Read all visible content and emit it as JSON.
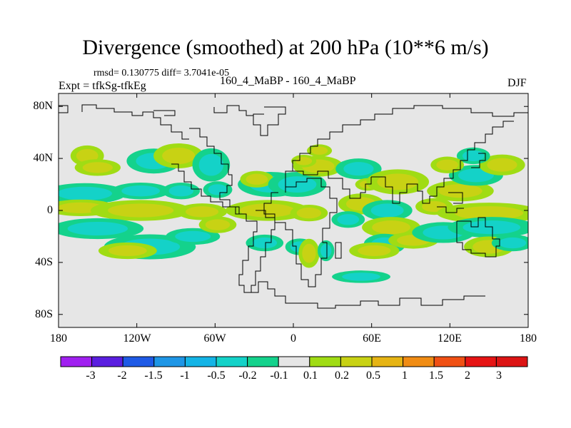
{
  "title": "Divergence (smoothed) at 200 hPa (10**6 m/s)",
  "stats": {
    "text": "rmsd= 0.130775 diff= 3.7041e-05",
    "rmsd": 0.130775,
    "diff": 3.7041e-05
  },
  "experiment": "Expt = tfkSg-tfkEg",
  "case_label": "160_4_MaBP - 160_4_MaBP",
  "season": "DJF",
  "chart_data": {
    "type": "heatmap",
    "title": "Divergence (smoothed) at 200 hPa (10**6 m/s)",
    "projection": "cylindrical-equidistant",
    "x_range": [
      -180,
      180
    ],
    "y_range": [
      -90,
      90
    ],
    "y_ticks": [
      {
        "value": 80,
        "label": "80N"
      },
      {
        "value": 40,
        "label": "40N"
      },
      {
        "value": 0,
        "label": "0"
      },
      {
        "value": -40,
        "label": "40S"
      },
      {
        "value": -80,
        "label": "80S"
      }
    ],
    "x_ticks": [
      {
        "value": -180,
        "label": "180"
      },
      {
        "value": -120,
        "label": "120W"
      },
      {
        "value": -60,
        "label": "60W"
      },
      {
        "value": 0,
        "label": "0"
      },
      {
        "value": 60,
        "label": "60E"
      },
      {
        "value": 120,
        "label": "120E"
      },
      {
        "value": 180,
        "label": "180"
      }
    ],
    "levels": [
      "-3",
      "-2",
      "-1.5",
      "-1",
      "-0.5",
      "-0.2",
      "-0.1",
      "0.1",
      "0.2",
      "0.5",
      "1",
      "1.5",
      "2",
      "3"
    ],
    "colors": [
      "#a020f0",
      "#5a1ee0",
      "#1e5ae6",
      "#1e96e6",
      "#14b4e6",
      "#14d2c8",
      "#14d28c",
      "#e6e6e6",
      "#a0dc14",
      "#c8d214",
      "#e6b414",
      "#f08c14",
      "#f05014",
      "#e61414",
      "#dc1414"
    ],
    "background_color": "#e6e6e6",
    "regions": [
      {
        "name": "n-pacific-west",
        "level": 1,
        "lon": -158,
        "lat": 42,
        "rlon": 8,
        "rlat": 5
      },
      {
        "name": "n-pacific-west-pos",
        "level": 1,
        "lon": -150,
        "lat": 33,
        "rlon": 11,
        "rlat": 4
      },
      {
        "name": "ne-pacific-neg",
        "level": -1,
        "lon": -107,
        "lat": 38,
        "rlon": 13,
        "rlat": 6
      },
      {
        "name": "ne-pacific-pos",
        "level": 1,
        "lon": -88,
        "lat": 42,
        "rlon": 12,
        "rlat": 6
      },
      {
        "name": "us-west-neg",
        "level": -1,
        "lon": -63,
        "lat": 35,
        "rlon": 9,
        "rlat": 8
      },
      {
        "name": "trop-pac-west-neg",
        "level": -1,
        "lon": -160,
        "lat": 13,
        "rlon": 20,
        "rlat": 5
      },
      {
        "name": "trop-pac-mid-neg",
        "level": -1,
        "lon": -117,
        "lat": 15,
        "rlon": 14,
        "rlat": 4
      },
      {
        "name": "trop-pac-mid-neg2",
        "level": -1,
        "lon": -86,
        "lat": 15,
        "rlon": 9,
        "rlat": 4
      },
      {
        "name": "c-america-neg",
        "level": -1,
        "lon": -58,
        "lat": 16,
        "rlon": 7,
        "rlat": 4
      },
      {
        "name": "eq-pac-pos-west",
        "level": 1,
        "lon": -163,
        "lat": 2,
        "rlon": 17,
        "rlat": 4
      },
      {
        "name": "eq-pac-pos-mid",
        "level": 1,
        "lon": -117,
        "lat": 0,
        "rlon": 24,
        "rlat": 5
      },
      {
        "name": "eq-pac-pos-east",
        "level": 1,
        "lon": -70,
        "lat": -1,
        "rlon": 12,
        "rlat": 4
      },
      {
        "name": "s-pac-west-neg",
        "level": -1,
        "lon": -150,
        "lat": -14,
        "rlon": 22,
        "rlat": 5
      },
      {
        "name": "spcz-neg",
        "level": -1,
        "lon": -110,
        "lat": -28,
        "rlon": 22,
        "rlat": 6
      },
      {
        "name": "spcz-neg2",
        "level": -1,
        "lon": -77,
        "lat": -20,
        "rlon": 13,
        "rlat": 4
      },
      {
        "name": "s-pac-pos",
        "level": 1,
        "lon": -127,
        "lat": -31,
        "rlon": 14,
        "rlat": 4
      },
      {
        "name": "s-pac-pos2",
        "level": 1,
        "lon": -58,
        "lat": -11,
        "rlon": 9,
        "rlat": 4
      },
      {
        "name": "atlantic-n-neg",
        "level": -1,
        "lon": -17,
        "lat": 20,
        "rlon": 16,
        "rlat": 6
      },
      {
        "name": "atlantic-n-pos",
        "level": 1,
        "lon": -28,
        "lat": 24,
        "rlon": 8,
        "rlat": 4
      },
      {
        "name": "africa-n-neg",
        "level": -1,
        "lon": 3,
        "lat": 20,
        "rlon": 14,
        "rlat": 6
      },
      {
        "name": "n-africa-pos",
        "level": 1,
        "lon": 19,
        "lat": 34,
        "rlon": 12,
        "rlat": 5
      },
      {
        "name": "europe-pos",
        "level": 1,
        "lon": 8,
        "lat": 38,
        "rlon": 6,
        "rlat": 3
      },
      {
        "name": "n-europe-pos",
        "level": 1,
        "lon": 20,
        "lat": 46,
        "rlon": 6,
        "rlat": 3
      },
      {
        "name": "atlantic-eq-pos",
        "level": 1,
        "lon": -20,
        "lat": 0,
        "rlon": 20,
        "rlat": 5
      },
      {
        "name": "atlantic-eq-pos2",
        "level": 1,
        "lon": 12,
        "lat": -2,
        "rlon": 9,
        "rlat": 4
      },
      {
        "name": "s-atlantic-neg",
        "level": -1,
        "lon": -22,
        "lat": -25,
        "rlon": 9,
        "rlat": 4
      },
      {
        "name": "s-atlantic-neg2",
        "level": -1,
        "lon": 5,
        "lat": -28,
        "rlon": 7,
        "rlat": 4
      },
      {
        "name": "s-africa-pos",
        "level": 1,
        "lon": 12,
        "lat": -33,
        "rlon": 5,
        "rlat": 7
      },
      {
        "name": "s-africa-neg",
        "level": -1,
        "lon": 25,
        "lat": -31,
        "rlon": 4,
        "rlat": 5
      },
      {
        "name": "s-ocean-neg",
        "level": -1,
        "lon": 52,
        "lat": -51,
        "rlon": 14,
        "rlat": 3
      },
      {
        "name": "mideast-neg",
        "level": -1,
        "lon": 50,
        "lat": 32,
        "rlon": 11,
        "rlat": 5
      },
      {
        "name": "mideast-pos",
        "level": 1,
        "lon": 57,
        "lat": 20,
        "rlon": 6,
        "rlat": 3
      },
      {
        "name": "indian-n-pos",
        "level": 1,
        "lon": 52,
        "lat": 5,
        "rlon": 11,
        "rlat": 5
      },
      {
        "name": "asia-pos",
        "level": 1,
        "lon": 80,
        "lat": 22,
        "rlon": 15,
        "rlat": 6
      },
      {
        "name": "indian-eq-neg",
        "level": -1,
        "lon": 42,
        "lat": -7,
        "rlon": 8,
        "rlat": 4
      },
      {
        "name": "indian-mid-neg",
        "level": -1,
        "lon": 72,
        "lat": 0,
        "rlon": 12,
        "rlat": 5
      },
      {
        "name": "indian-s-pos",
        "level": 1,
        "lon": 75,
        "lat": -13,
        "rlon": 14,
        "rlat": 5
      },
      {
        "name": "indian-s-neg",
        "level": -1,
        "lon": 70,
        "lat": -26,
        "rlon": 10,
        "rlat": 5
      },
      {
        "name": "indian-s-pos2",
        "level": 1,
        "lon": 62,
        "lat": -31,
        "rlon": 12,
        "rlat": 4
      },
      {
        "name": "indian-s-pos3",
        "level": 1,
        "lon": 92,
        "lat": -23,
        "rlon": 12,
        "rlat": 4
      },
      {
        "name": "aus-neg",
        "level": -1,
        "lon": 115,
        "lat": -17,
        "rlon": 15,
        "rlat": 5
      },
      {
        "name": "maritime-pos",
        "level": 1,
        "lon": 108,
        "lat": 3,
        "rlon": 9,
        "rlat": 4
      },
      {
        "name": "nw-pacific-pos",
        "level": 1,
        "lon": 128,
        "lat": 15,
        "rlon": 16,
        "rlat": 5
      },
      {
        "name": "nw-pacific-neg",
        "level": -1,
        "lon": 140,
        "lat": 27,
        "rlon": 13,
        "rlat": 5
      },
      {
        "name": "nw-pacific-pos2",
        "level": 1,
        "lon": 160,
        "lat": 35,
        "rlon": 11,
        "rlat": 5
      },
      {
        "name": "w-pacific-eq-pos",
        "level": 1,
        "lon": 150,
        "lat": -2,
        "rlon": 25,
        "rlat": 5
      },
      {
        "name": "w-pacific-s-neg",
        "level": -1,
        "lon": 152,
        "lat": -13,
        "rlon": 21,
        "rlat": 5
      },
      {
        "name": "sw-pacific-pos",
        "level": 1,
        "lon": 150,
        "lat": -28,
        "rlon": 12,
        "rlat": 5
      },
      {
        "name": "sw-pacific-neg",
        "level": -1,
        "lon": 168,
        "lat": -25,
        "rlon": 10,
        "rlat": 4
      },
      {
        "name": "japan-neg",
        "level": -1,
        "lon": 138,
        "lat": 42,
        "rlon": 8,
        "rlat": 4
      },
      {
        "name": "china-pos",
        "level": 1,
        "lon": 118,
        "lat": 35,
        "rlon": 8,
        "rlat": 4
      }
    ]
  },
  "colorbar": {
    "labels": [
      "-3",
      "-2",
      "-1.5",
      "-1",
      "-0.5",
      "-0.2",
      "-0.1",
      "0.1",
      "0.2",
      "0.5",
      "1",
      "1.5",
      "2",
      "3"
    ]
  }
}
